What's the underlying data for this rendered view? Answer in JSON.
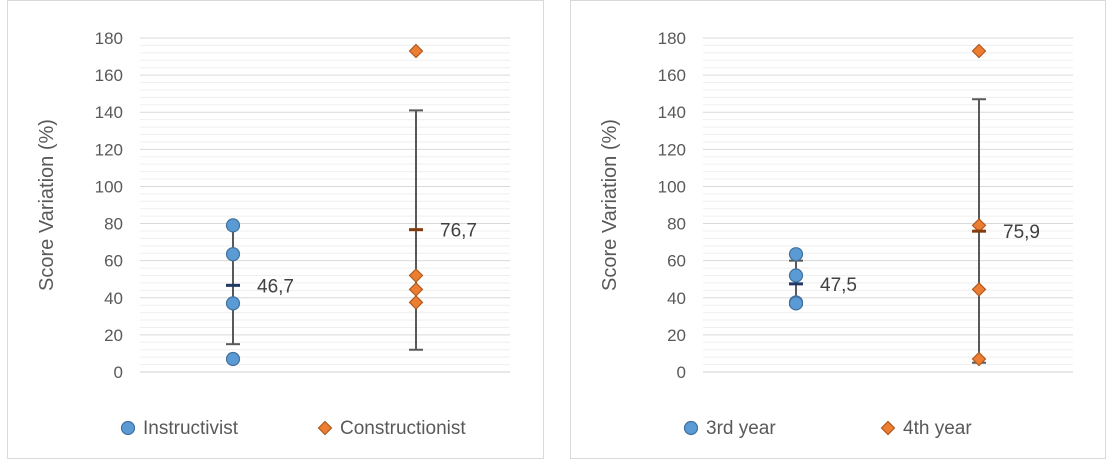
{
  "chart_data": [
    {
      "type": "scatter",
      "ylabel": "Score Variation (%)",
      "ylim": [
        0,
        180
      ],
      "y_major_step": 20,
      "y_minor_step": 4,
      "yticks": [
        "0",
        "20",
        "40",
        "60",
        "80",
        "100",
        "120",
        "140",
        "160",
        "180"
      ],
      "grid": true,
      "legend_position": "bottom",
      "series": [
        {
          "name": "Instructivist",
          "marker": "circle",
          "color": "#5b9bd5",
          "stroke": "#41719c",
          "x": 1,
          "values": [
            79,
            63.5,
            37,
            7
          ],
          "mean": 46.7,
          "mean_label": "46,7",
          "error_low": 15,
          "error_high": 79
        },
        {
          "name": "Constructionist",
          "marker": "diamond",
          "color": "#ed7d31",
          "stroke": "#ae5a21",
          "x": 2,
          "values": [
            173,
            52,
            44.5,
            37.5
          ],
          "mean": 76.7,
          "mean_label": "76,7",
          "error_low": 12,
          "error_high": 141
        }
      ]
    },
    {
      "type": "scatter",
      "ylabel": "Score Variation (%)",
      "ylim": [
        0,
        180
      ],
      "y_major_step": 20,
      "y_minor_step": 4,
      "yticks": [
        "0",
        "20",
        "40",
        "60",
        "80",
        "100",
        "120",
        "140",
        "160",
        "180"
      ],
      "grid": true,
      "legend_position": "bottom",
      "series": [
        {
          "name": "3rd year",
          "marker": "circle",
          "color": "#5b9bd5",
          "stroke": "#41719c",
          "x": 1,
          "values": [
            63.5,
            52,
            37.5,
            37
          ],
          "mean": 47.5,
          "mean_label": "47,5",
          "error_low": 36,
          "error_high": 60
        },
        {
          "name": "4th year",
          "marker": "diamond",
          "color": "#ed7d31",
          "stroke": "#ae5a21",
          "x": 2,
          "values": [
            173,
            79,
            44.5,
            7
          ],
          "mean": 75.9,
          "mean_label": "75,9",
          "error_low": 5,
          "error_high": 147
        }
      ]
    }
  ]
}
